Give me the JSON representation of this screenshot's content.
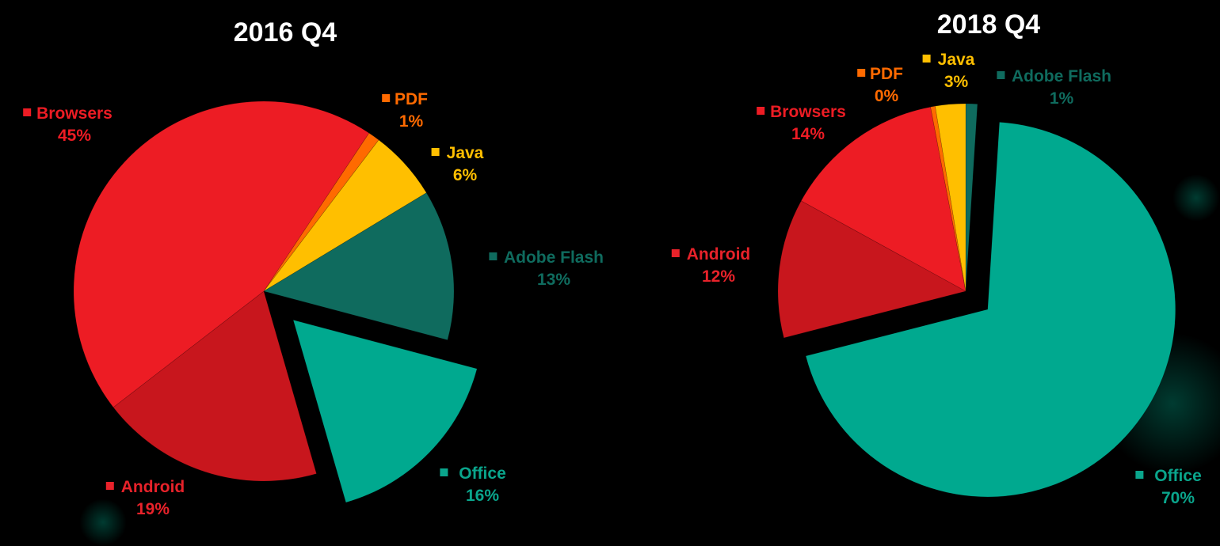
{
  "chart_data": [
    {
      "type": "pie",
      "title": "2016 Q4",
      "start": 33.6,
      "exploded": "Office",
      "slices": [
        {
          "name": "PDF",
          "pct": "1%",
          "value": 1.0,
          "color": "#ff6a00"
        },
        {
          "name": "Java",
          "pct": "6%",
          "value": 6.0,
          "color": "#ffbf00"
        },
        {
          "name": "Adobe Flash",
          "pct": "13%",
          "value": 12.8,
          "color": "#0f6b5e"
        },
        {
          "name": "Office",
          "pct": "16%",
          "value": 16.4,
          "color": "#00a98f"
        },
        {
          "name": "Android",
          "pct": "19%",
          "value": 19.0,
          "color": "#c8161d"
        },
        {
          "name": "Browsers",
          "pct": "45%",
          "value": 44.8,
          "color": "#ed1c24"
        }
      ]
    },
    {
      "type": "pie",
      "title": "2018 Q4",
      "start": 0,
      "exploded": "Office",
      "slices": [
        {
          "name": "Adobe Flash",
          "pct": "1%",
          "value": 1.0,
          "color": "#0f6b5e"
        },
        {
          "name": "Office",
          "pct": "70%",
          "value": 70.0,
          "color": "#00a98f"
        },
        {
          "name": "Android",
          "pct": "12%",
          "value": 12.0,
          "color": "#c8161d"
        },
        {
          "name": "Browsers",
          "pct": "14%",
          "value": 14.0,
          "color": "#ed1c24"
        },
        {
          "name": "PDF",
          "pct": "0%",
          "value": 0.4,
          "color": "#ff6a00"
        },
        {
          "name": "Java",
          "pct": "3%",
          "value": 2.6,
          "color": "#ffbf00"
        }
      ]
    }
  ],
  "label_colors": {
    "PDF": "#ff6a00",
    "Java": "#ffbf00",
    "Adobe Flash": "#0f6b5e",
    "Office": "#0aa58c",
    "Android": "#e8222a",
    "Browsers": "#ed1c24"
  }
}
